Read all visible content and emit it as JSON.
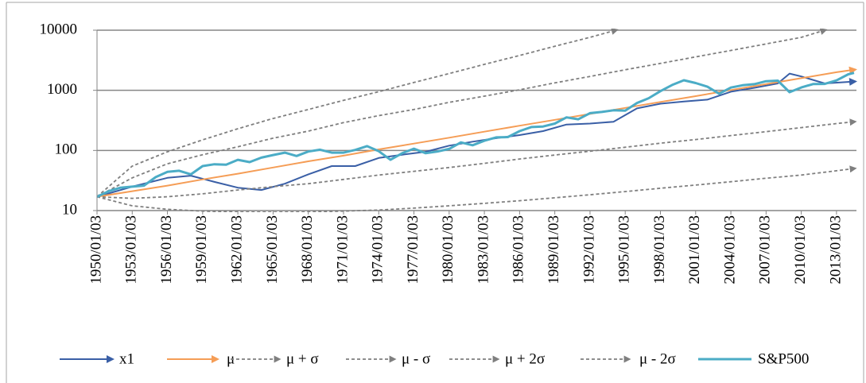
{
  "chart_data": {
    "type": "line",
    "log_y": true,
    "grid": true,
    "xlim": [
      1950,
      2014.7
    ],
    "xticks": [
      {
        "value": 1950,
        "label": "1950/01/03"
      },
      {
        "value": 1953,
        "label": "1953/01/03"
      },
      {
        "value": 1956,
        "label": "1956/01/03"
      },
      {
        "value": 1959,
        "label": "1959/01/03"
      },
      {
        "value": 1962,
        "label": "1962/01/03"
      },
      {
        "value": 1965,
        "label": "1965/01/03"
      },
      {
        "value": 1968,
        "label": "1968/01/03"
      },
      {
        "value": 1971,
        "label": "1971/01/03"
      },
      {
        "value": 1974,
        "label": "1974/01/03"
      },
      {
        "value": 1977,
        "label": "1977/01/03"
      },
      {
        "value": 1980,
        "label": "1980/01/03"
      },
      {
        "value": 1983,
        "label": "1983/01/03"
      },
      {
        "value": 1986,
        "label": "1986/01/03"
      },
      {
        "value": 1989,
        "label": "1989/01/03"
      },
      {
        "value": 1992,
        "label": "1992/01/03"
      },
      {
        "value": 1995,
        "label": "1995/01/03"
      },
      {
        "value": 1998,
        "label": "1998/01/03"
      },
      {
        "value": 2001,
        "label": "2001/01/03"
      },
      {
        "value": 2004,
        "label": "2004/01/03"
      },
      {
        "value": 2007,
        "label": "2007/01/03"
      },
      {
        "value": 2010,
        "label": "2010/01/03"
      },
      {
        "value": 2013,
        "label": "2013/01/03"
      }
    ],
    "ylim": [
      10,
      10000
    ],
    "yticks": [
      10,
      100,
      1000,
      10000
    ],
    "series": [
      {
        "name": "x1",
        "color": "#3a5fa6",
        "style": "arrow",
        "x": [
          1950,
          1953,
          1956,
          1958,
          1960,
          1962,
          1964,
          1966,
          1968,
          1970,
          1972,
          1974,
          1976,
          1978,
          1980,
          1982,
          1984,
          1986,
          1988,
          1990,
          1992,
          1994,
          1996,
          1998,
          2000,
          2002,
          2004,
          2006,
          2008,
          2009,
          2010,
          2012,
          2014.5
        ],
        "values": [
          17,
          25,
          35,
          38,
          30,
          24,
          22,
          28,
          40,
          55,
          55,
          75,
          85,
          95,
          120,
          140,
          160,
          180,
          210,
          270,
          280,
          300,
          500,
          600,
          650,
          700,
          950,
          1100,
          1300,
          1900,
          1700,
          1300,
          1400
        ]
      },
      {
        "name": "μ",
        "color": "#f59d56",
        "style": "arrow",
        "x": [
          1950,
          1953,
          1956,
          1959,
          1962,
          1965,
          1968,
          1971,
          1974,
          1977,
          1980,
          1983,
          1986,
          1989,
          1992,
          1995,
          1998,
          2001,
          2004,
          2007,
          2010,
          2013,
          2014.5
        ],
        "values": [
          17,
          21,
          26,
          33,
          41,
          52,
          66,
          82,
          104,
          130,
          163,
          205,
          258,
          323,
          405,
          510,
          640,
          800,
          1010,
          1265,
          1590,
          2000,
          2200
        ]
      },
      {
        "name": "μ + σ",
        "color": "#7f7f7f",
        "style": "dash",
        "x": [
          1950,
          1953,
          1956,
          1959,
          1962,
          1965,
          1968,
          1971,
          1974,
          1977,
          1980,
          1983,
          1986,
          1989,
          1992,
          1995,
          1998,
          2001,
          2004,
          2007,
          2010,
          2012
        ],
        "values": [
          17,
          35,
          60,
          85,
          115,
          160,
          210,
          290,
          380,
          480,
          630,
          800,
          1020,
          1330,
          1700,
          2200,
          2800,
          3600,
          4600,
          5900,
          7600,
          10000
        ]
      },
      {
        "name": "μ - σ",
        "color": "#7f7f7f",
        "style": "dash",
        "x": [
          1950,
          1953,
          1956,
          1959,
          1962,
          1965,
          1968,
          1971,
          1974,
          1977,
          1980,
          1983,
          1986,
          1989,
          1992,
          1995,
          1998,
          2001,
          2004,
          2007,
          2010,
          2013,
          2014.5
        ],
        "values": [
          17,
          16,
          17,
          19,
          22,
          25,
          28,
          33,
          39,
          45,
          52,
          61,
          72,
          84,
          97,
          113,
          132,
          152,
          177,
          205,
          240,
          280,
          300
        ]
      },
      {
        "name": "μ + 2σ",
        "color": "#7f7f7f",
        "style": "dash",
        "x": [
          1950,
          1953,
          1956,
          1959,
          1962,
          1965,
          1968,
          1971,
          1974,
          1977,
          1980,
          1983,
          1986,
          1989,
          1992,
          1994.2
        ],
        "values": [
          17,
          55,
          95,
          150,
          230,
          340,
          480,
          680,
          950,
          1350,
          1900,
          2700,
          3800,
          5400,
          7600,
          10000
        ]
      },
      {
        "name": "μ - 2σ",
        "color": "#7f7f7f",
        "style": "dash",
        "x": [
          1950,
          1953,
          1956,
          1959,
          1962,
          1965,
          1968,
          1971,
          1974,
          1977,
          1980,
          1983,
          1986,
          1989,
          1992,
          1995,
          1998,
          2001,
          2004,
          2007,
          2010,
          2013,
          2014.5
        ],
        "values": [
          17,
          12,
          10.5,
          9.8,
          9.5,
          9.4,
          9.5,
          9.8,
          10.2,
          11,
          12,
          13.2,
          14.6,
          16.3,
          18.3,
          20.7,
          23.5,
          26.6,
          30.2,
          34.5,
          39,
          46,
          50
        ]
      },
      {
        "name": "S&P500",
        "color": "#4bacc6",
        "style": "thick",
        "x": [
          1950,
          1951,
          1952,
          1953,
          1954,
          1955,
          1956,
          1957,
          1958,
          1959,
          1960,
          1961,
          1962,
          1963,
          1964,
          1965,
          1966,
          1967,
          1968,
          1969,
          1970,
          1971,
          1972,
          1973,
          1974,
          1975,
          1976,
          1977,
          1978,
          1979,
          1980,
          1981,
          1982,
          1983,
          1984,
          1985,
          1986,
          1987,
          1988,
          1989,
          1990,
          1991,
          1992,
          1993,
          1994,
          1995,
          1996,
          1997,
          1998,
          1999,
          2000,
          2001,
          2002,
          2003,
          2004,
          2005,
          2006,
          2007,
          2008,
          2009,
          2010,
          2011,
          2012,
          2013,
          2014,
          2014.5
        ],
        "values": [
          17,
          21,
          24,
          25,
          26,
          36,
          44,
          46,
          40,
          55,
          59,
          58,
          70,
          64,
          76,
          84,
          92,
          81,
          96,
          103,
          92,
          92,
          102,
          118,
          97,
          70,
          90,
          107,
          90,
          96,
          106,
          136,
          122,
          145,
          165,
          167,
          210,
          245,
          250,
          280,
          355,
          330,
          417,
          436,
          466,
          459,
          615,
          740,
          970,
          1229,
          1469,
          1320,
          1148,
          880,
          1112,
          1212,
          1268,
          1416,
          1447,
          931,
          1115,
          1272,
          1277,
          1462,
          1848,
          1950
        ]
      }
    ]
  }
}
